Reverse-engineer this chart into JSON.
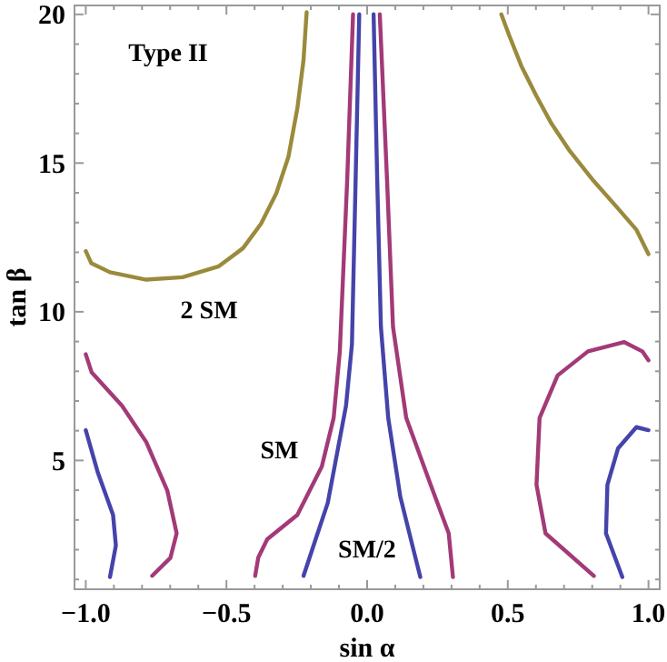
{
  "chart_data": {
    "type": "line",
    "xlabel": "sin α",
    "ylabel": "tan β",
    "xlim": [
      -1.04,
      1.04
    ],
    "ylim": [
      0.67,
      20.3
    ],
    "xticks": [
      {
        "value": -1,
        "label": "−1.0"
      },
      {
        "value": -0.9,
        "label": null
      },
      {
        "value": -0.8,
        "label": null
      },
      {
        "value": -0.7,
        "label": null
      },
      {
        "value": -0.6,
        "label": null
      },
      {
        "value": -0.5,
        "label": "−0.5"
      },
      {
        "value": -0.4,
        "label": null
      },
      {
        "value": -0.3,
        "label": null
      },
      {
        "value": -0.2,
        "label": null
      },
      {
        "value": -0.1,
        "label": null
      },
      {
        "value": 0,
        "label": "0.0"
      },
      {
        "value": 0.1,
        "label": null
      },
      {
        "value": 0.2,
        "label": null
      },
      {
        "value": 0.3,
        "label": null
      },
      {
        "value": 0.4,
        "label": null
      },
      {
        "value": 0.5,
        "label": "0.5"
      },
      {
        "value": 0.6,
        "label": null
      },
      {
        "value": 0.7,
        "label": null
      },
      {
        "value": 0.8,
        "label": null
      },
      {
        "value": 0.9,
        "label": null
      },
      {
        "value": 1,
        "label": "1.0"
      }
    ],
    "yticks": [
      {
        "value": 1,
        "label": null
      },
      {
        "value": 2,
        "label": null
      },
      {
        "value": 3,
        "label": null
      },
      {
        "value": 4,
        "label": null
      },
      5,
      {
        "value": 6,
        "label": null
      },
      {
        "value": 7,
        "label": null
      },
      {
        "value": 8,
        "label": null
      },
      {
        "value": 9,
        "label": null
      },
      10,
      {
        "value": 11,
        "label": null
      },
      {
        "value": 12,
        "label": null
      },
      {
        "value": 13,
        "label": null
      },
      {
        "value": 14,
        "label": null
      },
      15,
      {
        "value": 16,
        "label": null
      },
      {
        "value": 17,
        "label": null
      },
      {
        "value": 18,
        "label": null
      },
      {
        "value": 19,
        "label": null
      },
      20
    ],
    "grid": false,
    "marker": "none",
    "line_style": "solid",
    "series": [
      {
        "color": "#9a8a3c",
        "x": [
          -1.0,
          -0.98,
          -0.914,
          -0.785,
          -0.656,
          -0.527,
          -0.441,
          -0.377,
          -0.323,
          -0.28,
          -0.248,
          -0.226,
          -0.215
        ],
        "values": [
          12.04,
          11.63,
          11.33,
          11.08,
          11.16,
          11.53,
          12.14,
          12.96,
          13.98,
          15.2,
          16.84,
          18.47,
          20.07
        ]
      },
      {
        "color": "#9a8a3c",
        "x": [
          0.477,
          0.505,
          0.548,
          0.602,
          0.655,
          0.72,
          0.806,
          0.892,
          0.957,
          1.0
        ],
        "values": [
          20.0,
          19.29,
          18.27,
          17.25,
          16.33,
          15.41,
          14.39,
          13.47,
          12.76,
          11.94
        ]
      },
      {
        "color": "#a33a78",
        "x": [
          -0.05,
          -0.071,
          -0.097,
          -0.119,
          -0.161,
          -0.248,
          -0.355,
          -0.387,
          -0.398
        ],
        "values": [
          20.0,
          14.39,
          8.67,
          6.43,
          4.8,
          3.17,
          2.35,
          1.73,
          1.12
        ]
      },
      {
        "color": "#a33a78",
        "x": [
          0.045,
          0.071,
          0.092,
          0.139,
          0.226,
          0.29,
          0.305
        ],
        "values": [
          20.0,
          14.39,
          9.49,
          6.43,
          4.18,
          2.55,
          1.08
        ]
      },
      {
        "color": "#4444aa",
        "x": [
          -0.028,
          -0.041,
          -0.054,
          -0.075,
          -0.14,
          -0.183,
          -0.226
        ],
        "values": [
          20.0,
          14.39,
          8.9,
          6.84,
          3.57,
          2.35,
          1.12
        ]
      },
      {
        "color": "#4444aa",
        "x": [
          0.023,
          0.036,
          0.049,
          0.075,
          0.118,
          0.161,
          0.189
        ],
        "values": [
          20.0,
          14.39,
          9.49,
          6.43,
          3.78,
          2.14,
          1.08
        ]
      },
      {
        "color": "#a33a78",
        "x": [
          -1.0,
          -0.979,
          -0.871,
          -0.785,
          -0.71,
          -0.677,
          -0.699,
          -0.764
        ],
        "values": [
          8.57,
          7.96,
          6.84,
          5.62,
          3.98,
          2.55,
          1.73,
          1.12
        ]
      },
      {
        "color": "#4444aa",
        "x": [
          -1.0,
          -0.957,
          -0.903,
          -0.893,
          -0.914
        ],
        "values": [
          6.02,
          4.59,
          3.17,
          2.14,
          1.08
        ]
      },
      {
        "color": "#a33a78",
        "x": [
          0.806,
          0.634,
          0.602,
          0.613,
          0.677,
          0.785,
          0.914,
          0.978,
          1.0
        ],
        "values": [
          1.12,
          2.55,
          4.18,
          6.43,
          7.86,
          8.67,
          8.98,
          8.67,
          8.37
        ]
      },
      {
        "color": "#4444aa",
        "x": [
          0.907,
          0.849,
          0.854,
          0.892,
          0.957,
          1.0
        ],
        "values": [
          1.08,
          2.55,
          4.18,
          5.41,
          6.12,
          6.02
        ]
      }
    ],
    "annotations": [
      "Type II",
      "2 SM",
      "SM",
      "SM/2"
    ]
  }
}
